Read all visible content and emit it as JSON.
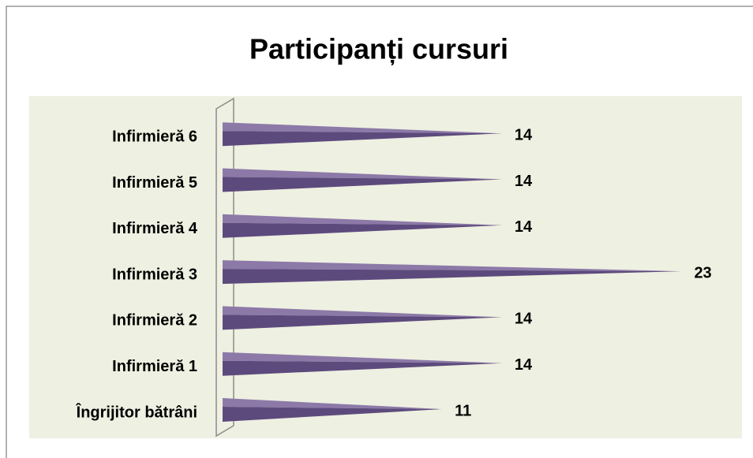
{
  "chart_data": {
    "type": "bar",
    "orientation": "horizontal",
    "title": "Participanți cursuri",
    "categories": [
      "Îngrijitor bătrâni",
      "Infirmieră 1",
      "Infirmieră 2",
      "Infirmieră 3",
      "Infirmieră 4",
      "Infirmieră 5",
      "Infirmieră 6"
    ],
    "values": [
      11,
      14,
      14,
      23,
      14,
      14,
      14
    ],
    "color": "#5d4a7d",
    "xlim": [
      0,
      25
    ]
  }
}
